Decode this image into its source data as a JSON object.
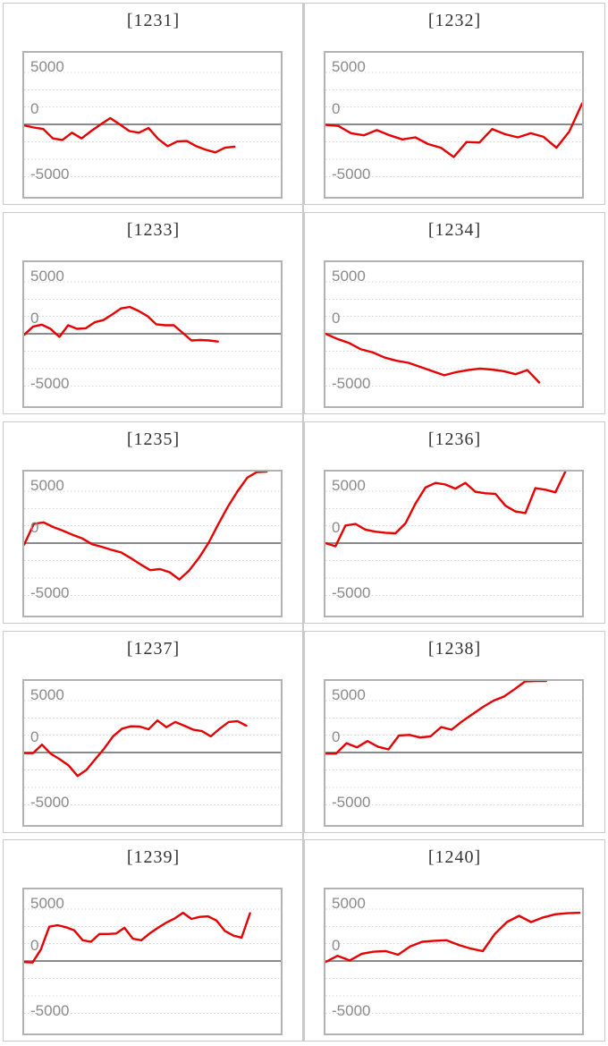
{
  "page": {
    "background": "#ffffff",
    "description": "Grid of ten slump line charts (2 columns x 5 rows), each in a bordered panel"
  },
  "chart_config": {
    "type": "line",
    "y_tick_labels": [
      "5000",
      "0",
      "-5000"
    ],
    "y_tick_values": [
      5000,
      0,
      -5000
    ],
    "ylim": [
      -7100,
      7050
    ],
    "grid": "dotted horizontal gridlines",
    "zero_line": true,
    "legend": "none",
    "x_axis_labels": "none",
    "colors": {
      "line": "#e60000",
      "zero_line": "#8a8a8a",
      "gridline": "#d2d2d2",
      "plot_border": "#b2b2b2",
      "panel_border": "#c9c9c9",
      "title_text": "#333333",
      "tick_text": "#8a8a8a"
    }
  },
  "chart_data": [
    {
      "type": "line",
      "title": "[1231]",
      "x_span": 0.82,
      "values": [
        -100,
        -300,
        -450,
        -1350,
        -1500,
        -800,
        -1350,
        -650,
        0,
        600,
        0,
        -650,
        -800,
        -350,
        -1400,
        -2100,
        -1650,
        -1600,
        -2100,
        -2450,
        -2700,
        -2250,
        -2150
      ]
    },
    {
      "type": "line",
      "title": "[1232]",
      "x_span": 1.0,
      "values": [
        -50,
        -150,
        -850,
        -1050,
        -550,
        -1050,
        -1450,
        -1250,
        -1900,
        -2250,
        -3150,
        -1700,
        -1750,
        -450,
        -950,
        -1250,
        -850,
        -1200,
        -2250,
        -700,
        2000
      ]
    },
    {
      "type": "line",
      "title": "[1233]",
      "x_span": 0.755,
      "values": [
        -100,
        680,
        880,
        470,
        -300,
        820,
        470,
        530,
        1100,
        1320,
        1850,
        2440,
        2590,
        2200,
        1700,
        910,
        820,
        820,
        90,
        -650,
        -600,
        -650,
        -750
      ]
    },
    {
      "type": "line",
      "title": "[1234]",
      "x_span": 0.833,
      "values": [
        0,
        -500,
        -900,
        -1500,
        -1800,
        -2300,
        -2600,
        -2800,
        -3200,
        -3600,
        -4000,
        -3700,
        -3500,
        -3350,
        -3450,
        -3600,
        -3900,
        -3500,
        -4700
      ]
    },
    {
      "type": "line",
      "title": "[1235]",
      "x_span": 0.945,
      "values": [
        -150,
        1850,
        2000,
        1550,
        1200,
        800,
        450,
        -100,
        -350,
        -650,
        -900,
        -1450,
        -2050,
        -2600,
        -2500,
        -2800,
        -3500,
        -2650,
        -1450,
        0,
        1800,
        3500,
        5000,
        6300,
        6850,
        6900
      ]
    },
    {
      "type": "line",
      "title": "[1236]",
      "x_span": 0.935,
      "values": [
        0,
        -300,
        1700,
        1850,
        1300,
        1100,
        1000,
        950,
        1900,
        3800,
        5350,
        5800,
        5650,
        5250,
        5800,
        4950,
        4800,
        4750,
        3600,
        3050,
        2900,
        5300,
        5150,
        4900,
        6900
      ]
    },
    {
      "type": "line",
      "title": "[1237]",
      "x_span": 0.866,
      "values": [
        -60,
        -60,
        760,
        -120,
        -650,
        -1240,
        -2260,
        -1680,
        -650,
        380,
        1560,
        2290,
        2530,
        2500,
        2240,
        3090,
        2440,
        2940,
        2590,
        2210,
        2060,
        1560,
        2290,
        2940,
        3030,
        2590
      ]
    },
    {
      "type": "line",
      "title": "[1238]",
      "x_span": 0.86,
      "values": [
        -100,
        -100,
        900,
        500,
        1100,
        550,
        300,
        1650,
        1700,
        1450,
        1550,
        2450,
        2200,
        3000,
        3700,
        4400,
        5000,
        5400,
        6100,
        6850,
        6900,
        6900
      ]
    },
    {
      "type": "line",
      "title": "[1239]",
      "x_span": 0.88,
      "values": [
        -100,
        -150,
        1100,
        3300,
        3450,
        3250,
        2950,
        2000,
        1850,
        2600,
        2600,
        2650,
        3200,
        2150,
        2000,
        2650,
        3200,
        3700,
        4100,
        4650,
        4050,
        4250,
        4300,
        3900,
        2900,
        2450,
        2250,
        4600
      ]
    },
    {
      "type": "line",
      "title": "[1240]",
      "x_span": 0.99,
      "values": [
        -100,
        500,
        50,
        700,
        900,
        950,
        600,
        1400,
        1850,
        1950,
        2000,
        1550,
        1200,
        950,
        2600,
        3750,
        4350,
        3750,
        4200,
        4500,
        4600,
        4650
      ]
    }
  ]
}
